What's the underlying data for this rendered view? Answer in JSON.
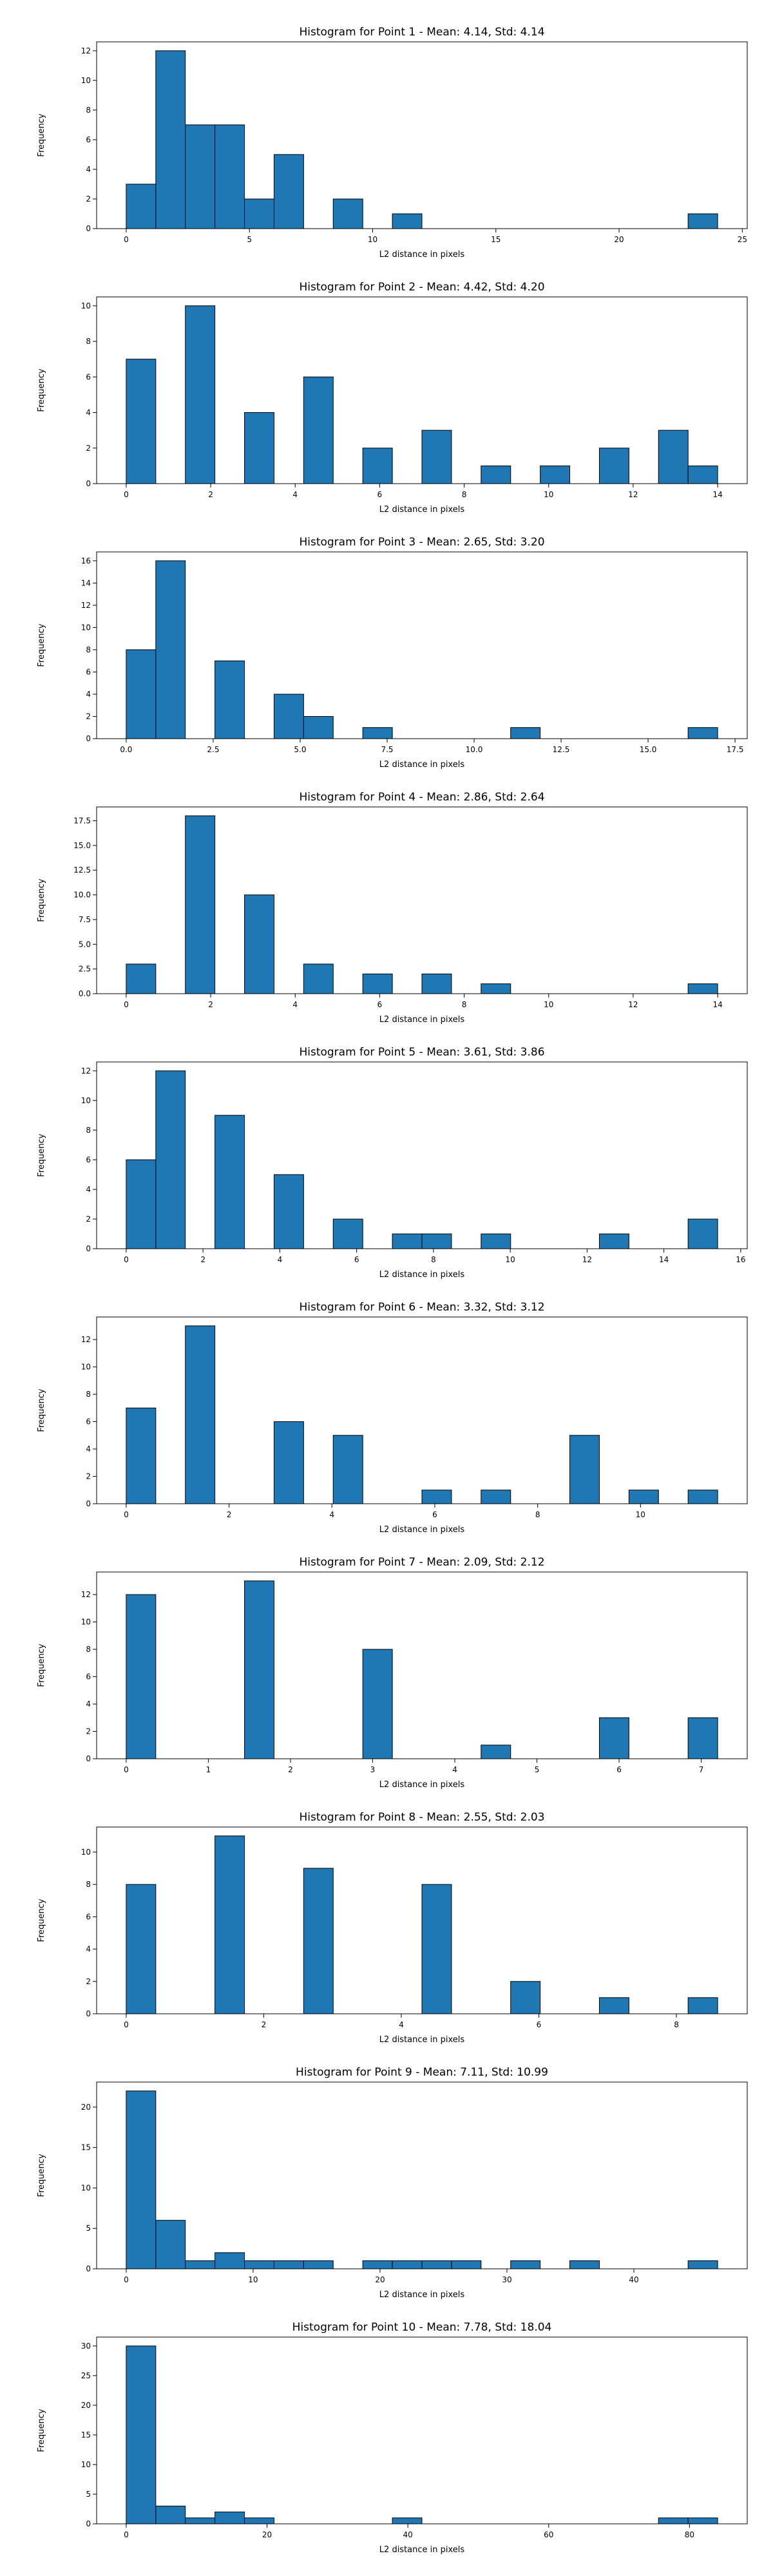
{
  "chart_data": [
    {
      "type": "bar",
      "title": "Histogram for Point 1 - Mean: 4.14, Std: 4.14",
      "xlabel": "L2 distance in pixels",
      "ylabel": "Frequency",
      "xlim": [
        -1.2,
        25.2
      ],
      "ylim": [
        0,
        12.6
      ],
      "xticks": [
        0,
        5,
        10,
        15,
        20,
        25
      ],
      "xtick_labels": [
        "0",
        "5",
        "10",
        "15",
        "20",
        "25"
      ],
      "yticks": [
        0,
        2,
        4,
        6,
        8,
        10,
        12
      ],
      "ytick_labels": [
        "0",
        "2",
        "4",
        "6",
        "8",
        "10",
        "12"
      ],
      "bin_edges": [
        0,
        1.2,
        2.4,
        3.6,
        4.8,
        6.0,
        7.2,
        8.4,
        9.6,
        10.8,
        12.0,
        13.2,
        14.4,
        15.6,
        16.8,
        18.0,
        19.2,
        20.4,
        21.6,
        22.8,
        24.0
      ],
      "counts": [
        3,
        12,
        7,
        7,
        2,
        5,
        0,
        2,
        0,
        1,
        0,
        0,
        0,
        0,
        0,
        0,
        0,
        0,
        0,
        1
      ],
      "color": "#1f77b4"
    },
    {
      "type": "bar",
      "title": "Histogram for Point 2 - Mean: 4.42, Std: 4.20",
      "xlabel": "L2 distance in pixels",
      "ylabel": "Frequency",
      "xlim": [
        -0.7,
        14.7
      ],
      "ylim": [
        0,
        10.5
      ],
      "xticks": [
        0,
        2,
        4,
        6,
        8,
        10,
        12,
        14
      ],
      "xtick_labels": [
        "0",
        "2",
        "4",
        "6",
        "8",
        "10",
        "12",
        "14"
      ],
      "yticks": [
        0,
        2,
        4,
        6,
        8,
        10
      ],
      "ytick_labels": [
        "0",
        "2",
        "4",
        "6",
        "8",
        "10"
      ],
      "bin_edges": [
        0,
        0.7,
        1.4,
        2.1,
        2.8,
        3.5,
        4.2,
        4.9,
        5.6,
        6.3,
        7.0,
        7.7,
        8.4,
        9.1,
        9.8,
        10.5,
        11.2,
        11.9,
        12.6,
        13.3,
        14.0
      ],
      "counts": [
        7,
        0,
        10,
        0,
        4,
        0,
        6,
        0,
        2,
        0,
        3,
        0,
        1,
        0,
        1,
        0,
        2,
        0,
        3,
        1
      ],
      "color": "#1f77b4"
    },
    {
      "type": "bar",
      "title": "Histogram for Point 3 - Mean: 2.65, Std: 3.20",
      "xlabel": "L2 distance in pixels",
      "ylabel": "Frequency",
      "xlim": [
        -0.85,
        17.85
      ],
      "ylim": [
        0,
        16.8
      ],
      "xticks": [
        0,
        2.5,
        5,
        7.5,
        10,
        12.5,
        15,
        17.5
      ],
      "xtick_labels": [
        "0.0",
        "2.5",
        "5.0",
        "7.5",
        "10.0",
        "12.5",
        "15.0",
        "17.5"
      ],
      "yticks": [
        0,
        2,
        4,
        6,
        8,
        10,
        12,
        14,
        16
      ],
      "ytick_labels": [
        "0",
        "2",
        "4",
        "6",
        "8",
        "10",
        "12",
        "14",
        "16"
      ],
      "bin_edges": [
        0,
        0.85,
        1.7,
        2.55,
        3.4,
        4.25,
        5.1,
        5.95,
        6.8,
        7.65,
        8.5,
        9.35,
        10.2,
        11.05,
        11.9,
        12.75,
        13.6,
        14.45,
        15.3,
        16.15,
        17.0
      ],
      "counts": [
        8,
        16,
        0,
        7,
        0,
        4,
        2,
        0,
        1,
        0,
        0,
        0,
        0,
        1,
        0,
        0,
        0,
        0,
        0,
        1
      ],
      "color": "#1f77b4"
    },
    {
      "type": "bar",
      "title": "Histogram for Point 4 - Mean: 2.86, Std: 2.64",
      "xlabel": "L2 distance in pixels",
      "ylabel": "Frequency",
      "xlim": [
        -0.7,
        14.7
      ],
      "ylim": [
        0,
        18.9
      ],
      "xticks": [
        0,
        2,
        4,
        6,
        8,
        10,
        12,
        14
      ],
      "xtick_labels": [
        "0",
        "2",
        "4",
        "6",
        "8",
        "10",
        "12",
        "14"
      ],
      "yticks": [
        0,
        2.5,
        5,
        7.5,
        10,
        12.5,
        15,
        17.5
      ],
      "ytick_labels": [
        "0.0",
        "2.5",
        "5.0",
        "7.5",
        "10.0",
        "12.5",
        "15.0",
        "17.5"
      ],
      "bin_edges": [
        0,
        0.7,
        1.4,
        2.1,
        2.8,
        3.5,
        4.2,
        4.9,
        5.6,
        6.3,
        7.0,
        7.7,
        8.4,
        9.1,
        9.8,
        10.5,
        11.2,
        11.9,
        12.6,
        13.3,
        14.0
      ],
      "counts": [
        3,
        0,
        18,
        0,
        10,
        0,
        3,
        0,
        2,
        0,
        2,
        0,
        1,
        0,
        0,
        0,
        0,
        0,
        0,
        1
      ],
      "color": "#1f77b4"
    },
    {
      "type": "bar",
      "title": "Histogram for Point 5 - Mean: 3.61, Std: 3.86",
      "xlabel": "L2 distance in pixels",
      "ylabel": "Frequency",
      "xlim": [
        -0.77,
        16.17
      ],
      "ylim": [
        0,
        12.6
      ],
      "xticks": [
        0,
        2,
        4,
        6,
        8,
        10,
        12,
        14,
        16
      ],
      "xtick_labels": [
        "0",
        "2",
        "4",
        "6",
        "8",
        "10",
        "12",
        "14",
        "16"
      ],
      "yticks": [
        0,
        2,
        4,
        6,
        8,
        10,
        12
      ],
      "ytick_labels": [
        "0",
        "2",
        "4",
        "6",
        "8",
        "10",
        "12"
      ],
      "bin_edges": [
        0,
        0.77,
        1.54,
        2.31,
        3.08,
        3.85,
        4.62,
        5.39,
        6.16,
        6.93,
        7.7,
        8.47,
        9.24,
        10.01,
        10.78,
        11.55,
        12.32,
        13.09,
        13.86,
        14.63,
        15.4
      ],
      "counts": [
        6,
        12,
        0,
        9,
        0,
        5,
        0,
        2,
        0,
        1,
        1,
        0,
        1,
        0,
        0,
        0,
        1,
        0,
        0,
        2
      ],
      "color": "#1f77b4"
    },
    {
      "type": "bar",
      "title": "Histogram for Point 6 - Mean: 3.32, Std: 3.12",
      "xlabel": "L2 distance in pixels",
      "ylabel": "Frequency",
      "xlim": [
        -0.575,
        12.075
      ],
      "ylim": [
        0,
        13.65
      ],
      "xticks": [
        0,
        2,
        4,
        6,
        8,
        10
      ],
      "xtick_labels": [
        "0",
        "2",
        "4",
        "6",
        "8",
        "10"
      ],
      "yticks": [
        0,
        2,
        4,
        6,
        8,
        10,
        12
      ],
      "ytick_labels": [
        "0",
        "2",
        "4",
        "6",
        "8",
        "10",
        "12"
      ],
      "bin_edges": [
        0,
        0.575,
        1.15,
        1.725,
        2.3,
        2.875,
        3.45,
        4.025,
        4.6,
        5.175,
        5.75,
        6.325,
        6.9,
        7.475,
        8.05,
        8.625,
        9.2,
        9.775,
        10.35,
        10.925,
        11.5
      ],
      "counts": [
        7,
        0,
        13,
        0,
        0,
        6,
        0,
        5,
        0,
        0,
        1,
        0,
        1,
        0,
        0,
        5,
        0,
        1,
        0,
        1
      ],
      "color": "#1f77b4"
    },
    {
      "type": "bar",
      "title": "Histogram for Point 7 - Mean: 2.09, Std: 2.12",
      "xlabel": "L2 distance in pixels",
      "ylabel": "Frequency",
      "xlim": [
        -0.36,
        7.56
      ],
      "ylim": [
        0,
        13.65
      ],
      "xticks": [
        0,
        1,
        2,
        3,
        4,
        5,
        6,
        7
      ],
      "xtick_labels": [
        "0",
        "1",
        "2",
        "3",
        "4",
        "5",
        "6",
        "7"
      ],
      "yticks": [
        0,
        2,
        4,
        6,
        8,
        10,
        12
      ],
      "ytick_labels": [
        "0",
        "2",
        "4",
        "6",
        "8",
        "10",
        "12"
      ],
      "bin_edges": [
        0,
        0.36,
        0.72,
        1.08,
        1.44,
        1.8,
        2.16,
        2.52,
        2.88,
        3.24,
        3.6,
        3.96,
        4.32,
        4.68,
        5.04,
        5.4,
        5.76,
        6.12,
        6.48,
        6.84,
        7.2
      ],
      "counts": [
        12,
        0,
        0,
        0,
        13,
        0,
        0,
        0,
        8,
        0,
        0,
        0,
        1,
        0,
        0,
        0,
        3,
        0,
        0,
        3
      ],
      "color": "#1f77b4"
    },
    {
      "type": "bar",
      "title": "Histogram for Point 8 - Mean: 2.55, Std: 2.03",
      "xlabel": "L2 distance in pixels",
      "ylabel": "Frequency",
      "xlim": [
        -0.43,
        9.03
      ],
      "ylim": [
        0,
        11.55
      ],
      "xticks": [
        0,
        2,
        4,
        6,
        8
      ],
      "xtick_labels": [
        "0",
        "2",
        "4",
        "6",
        "8"
      ],
      "yticks": [
        0,
        2,
        4,
        6,
        8,
        10
      ],
      "ytick_labels": [
        "0",
        "2",
        "4",
        "6",
        "8",
        "10"
      ],
      "bin_edges": [
        0,
        0.43,
        0.86,
        1.29,
        1.72,
        2.15,
        2.58,
        3.01,
        3.44,
        3.87,
        4.3,
        4.73,
        5.16,
        5.59,
        6.02,
        6.45,
        6.88,
        7.31,
        7.74,
        8.17,
        8.6
      ],
      "counts": [
        8,
        0,
        0,
        11,
        0,
        0,
        9,
        0,
        0,
        0,
        8,
        0,
        0,
        2,
        0,
        0,
        1,
        0,
        0,
        1
      ],
      "color": "#1f77b4"
    },
    {
      "type": "bar",
      "title": "Histogram for Point 9 - Mean: 7.11, Std: 10.99",
      "xlabel": "L2 distance in pixels",
      "ylabel": "Frequency",
      "xlim": [
        -2.33,
        48.93
      ],
      "ylim": [
        0,
        23.1
      ],
      "xticks": [
        0,
        10,
        20,
        30,
        40
      ],
      "xtick_labels": [
        "0",
        "10",
        "20",
        "30",
        "40"
      ],
      "yticks": [
        0,
        5,
        10,
        15,
        20
      ],
      "ytick_labels": [
        "0",
        "5",
        "10",
        "15",
        "20"
      ],
      "bin_edges": [
        0,
        2.33,
        4.66,
        6.99,
        9.32,
        11.65,
        13.98,
        16.31,
        18.64,
        20.97,
        23.3,
        25.63,
        27.96,
        30.29,
        32.62,
        34.95,
        37.28,
        39.61,
        41.94,
        44.27,
        46.6
      ],
      "counts": [
        22,
        6,
        1,
        2,
        1,
        1,
        1,
        0,
        1,
        1,
        1,
        1,
        0,
        1,
        0,
        1,
        0,
        0,
        0,
        1
      ],
      "color": "#1f77b4"
    },
    {
      "type": "bar",
      "title": "Histogram for Point 10 - Mean: 7.78, Std: 18.04",
      "xlabel": "L2 distance in pixels",
      "ylabel": "Frequency",
      "xlim": [
        -4.2,
        88.2
      ],
      "ylim": [
        0,
        31.5
      ],
      "xticks": [
        0,
        20,
        40,
        60,
        80
      ],
      "xtick_labels": [
        "0",
        "20",
        "40",
        "60",
        "80"
      ],
      "yticks": [
        0,
        5,
        10,
        15,
        20,
        25,
        30
      ],
      "ytick_labels": [
        "0",
        "5",
        "10",
        "15",
        "20",
        "25",
        "30"
      ],
      "bin_edges": [
        0,
        4.2,
        8.4,
        12.6,
        16.8,
        21.0,
        25.2,
        29.4,
        33.6,
        37.8,
        42.0,
        46.2,
        50.4,
        54.6,
        58.8,
        63.0,
        67.2,
        71.4,
        75.6,
        79.8,
        84.0
      ],
      "counts": [
        30,
        3,
        1,
        2,
        1,
        0,
        0,
        0,
        0,
        1,
        0,
        0,
        0,
        0,
        0,
        0,
        0,
        0,
        1,
        1
      ],
      "color": "#1f77b4"
    }
  ]
}
